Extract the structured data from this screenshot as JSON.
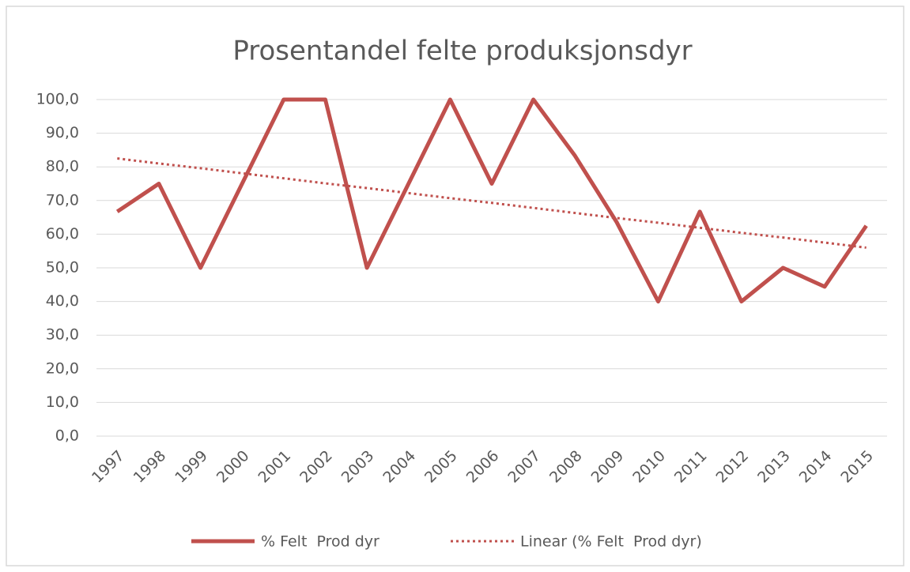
{
  "chart_data": {
    "type": "line",
    "title": "Prosentandel felte produksjonsdyr",
    "categories": [
      "1997",
      "1998",
      "1999",
      "2000",
      "2001",
      "2002",
      "2003",
      "2004",
      "2005",
      "2006",
      "2007",
      "2008",
      "2009",
      "2010",
      "2011",
      "2012",
      "2013",
      "2014",
      "2015"
    ],
    "series": [
      {
        "name": "% Felt  Prod dyr",
        "color": "#c0504d",
        "style": "solid",
        "values": [
          66.7,
          75,
          50,
          75,
          100,
          100,
          50,
          75,
          100,
          75,
          100,
          83.3,
          63.6,
          40,
          66.7,
          40,
          50,
          44.4,
          62.5
        ]
      },
      {
        "name": "Linear (% Felt  Prod dyr)",
        "color": "#c0504d",
        "style": "dotted",
        "values": [
          82.5,
          81.0,
          79.6,
          78.1,
          76.6,
          75.1,
          73.7,
          72.2,
          70.7,
          69.3,
          67.8,
          66.3,
          64.8,
          63.4,
          61.9,
          60.4,
          59.0,
          57.5,
          56.0
        ]
      }
    ],
    "ylim": [
      0,
      100
    ],
    "yticks": [
      {
        "value": 0,
        "label": "0,0"
      },
      {
        "value": 10,
        "label": "10,0"
      },
      {
        "value": 20,
        "label": "20,0"
      },
      {
        "value": 30,
        "label": "30,0"
      },
      {
        "value": 40,
        "label": "40,0"
      },
      {
        "value": 50,
        "label": "50,0"
      },
      {
        "value": 60,
        "label": "60,0"
      },
      {
        "value": 70,
        "label": "70,0"
      },
      {
        "value": 80,
        "label": "80,0"
      },
      {
        "value": 90,
        "label": "90,0"
      },
      {
        "value": 100,
        "label": "100,0"
      }
    ],
    "grid": true,
    "legend": "bottom"
  }
}
